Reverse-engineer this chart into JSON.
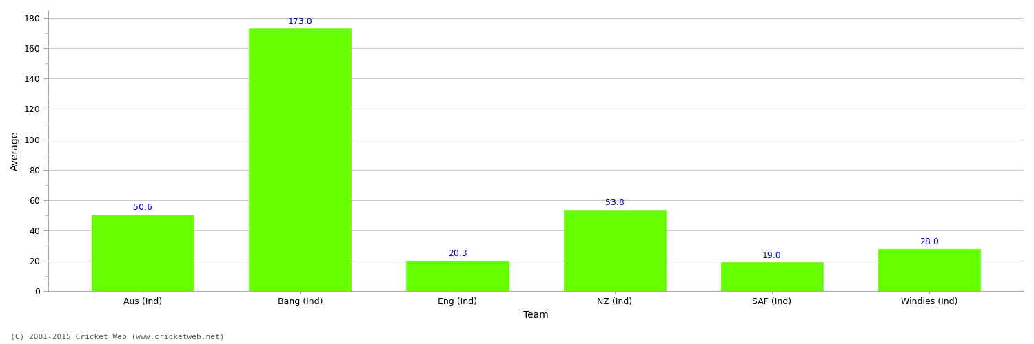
{
  "categories": [
    "Aus (Ind)",
    "Bang (Ind)",
    "Eng (Ind)",
    "NZ (Ind)",
    "SAF (Ind)",
    "Windies (Ind)"
  ],
  "values": [
    50.6,
    173.0,
    20.3,
    53.8,
    19.0,
    28.0
  ],
  "bar_color": "#66ff00",
  "bar_edge_color": "#66ff00",
  "label_color": "#0000cc",
  "ylabel": "Average",
  "xlabel": "Team",
  "ylim": [
    0,
    185
  ],
  "yticks": [
    0,
    20,
    40,
    60,
    80,
    100,
    120,
    140,
    160,
    180
  ],
  "grid_color": "#cccccc",
  "bg_color": "#ffffff",
  "label_fontsize": 9,
  "axis_fontsize": 10,
  "tick_fontsize": 9,
  "bar_width": 0.65,
  "footer": "(C) 2001-2015 Cricket Web (www.cricketweb.net)"
}
